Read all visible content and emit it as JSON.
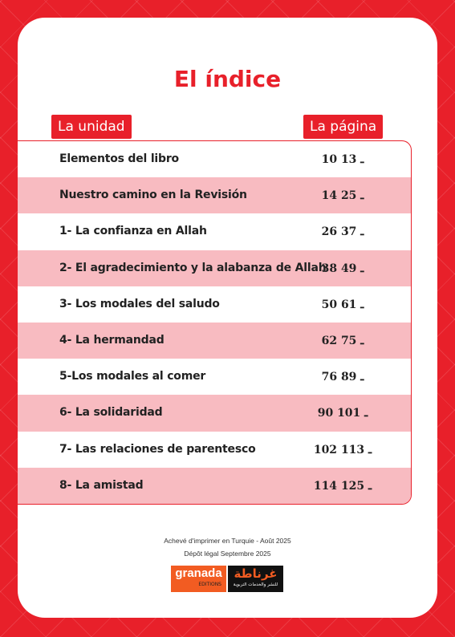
{
  "title": "El índice",
  "table": {
    "headers": [
      "La unidad",
      "La página"
    ],
    "rows": [
      [
        "Elementos del libro",
        "10 ـ 13"
      ],
      [
        "Nuestro camino en la Revisión",
        "14 ـ 25"
      ],
      [
        "1- La confianza en Allah",
        "26 ـ 37"
      ],
      [
        "2- El agradecimiento y la alabanza de Allah",
        "38 ـ 49"
      ],
      [
        "3- Los modales del saludo",
        "50 ـ 61"
      ],
      [
        "4- La hermandad",
        "62 ـ 75"
      ],
      [
        "5-Los modales al comer",
        "76 ـ 89"
      ],
      [
        "6- La solidaridad",
        "90 ـ 101"
      ],
      [
        "7- Las relaciones de parentesco",
        "102 ـ 113"
      ],
      [
        "8- La amistad",
        "114 ـ 125"
      ]
    ]
  },
  "footer": {
    "lines": [
      "Achevé d'imprimer en Turquie - Août 2025",
      "Dépôt légal Septembre 2025"
    ],
    "logo_left": {
      "name": "granada",
      "sub": "EDITIONS"
    },
    "logo_right": {
      "name": "غرناطة",
      "sub": "للنشر والخدمات التربوية"
    }
  }
}
